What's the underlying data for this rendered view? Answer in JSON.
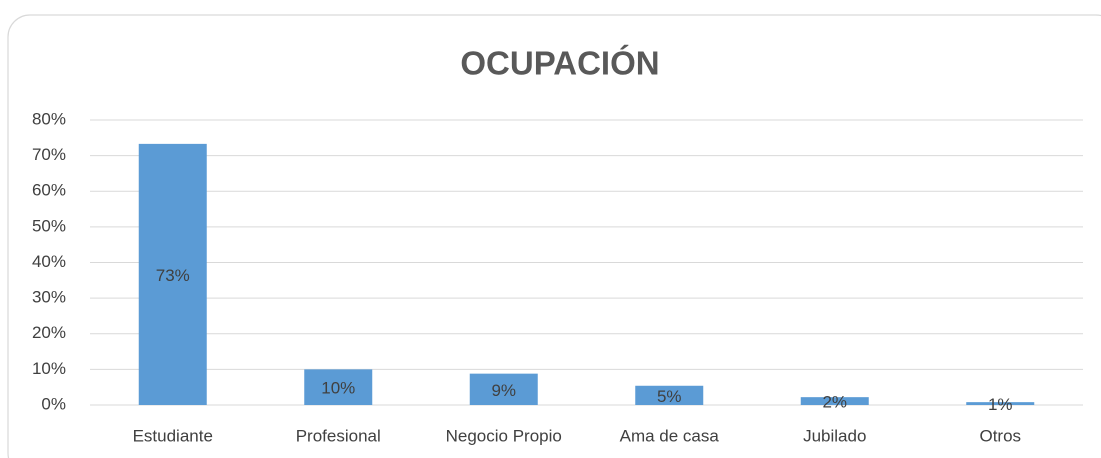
{
  "chart_data": {
    "type": "bar",
    "title": "OCUPACIÓN",
    "categories": [
      "Estudiante",
      "Profesional",
      "Negocio Propio",
      "Ama de casa",
      "Jubilado",
      "Otros"
    ],
    "values": [
      73.3,
      10,
      8.8,
      5.4,
      2.2,
      0.8
    ],
    "value_labels": [
      "73%",
      "10%",
      "9%",
      "5%",
      "2%",
      "1%"
    ],
    "color": "#5b9bd5",
    "ylim": [
      0,
      80
    ],
    "yticks": [
      {
        "value": 0,
        "label": "0%"
      },
      {
        "value": 10,
        "label": "10%"
      },
      {
        "value": 20,
        "label": "20%"
      },
      {
        "value": 30,
        "label": "30%"
      },
      {
        "value": 40,
        "label": "40%"
      },
      {
        "value": 50,
        "label": "50%"
      },
      {
        "value": 60,
        "label": "60%"
      },
      {
        "value": 70,
        "label": "70%"
      },
      {
        "value": 80,
        "label": "80%"
      }
    ],
    "grid": true
  }
}
